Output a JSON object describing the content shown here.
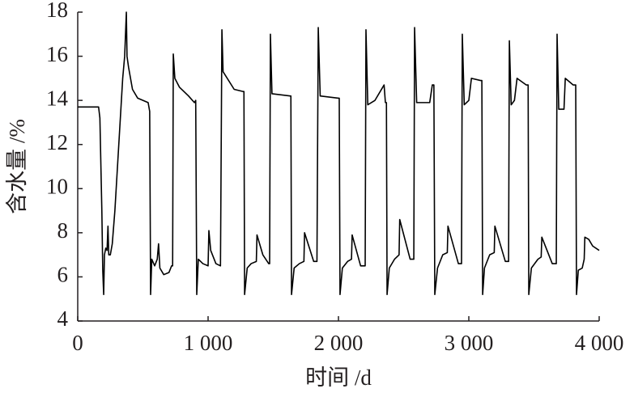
{
  "chart_data": {
    "type": "line",
    "xlabel": "时间 /d",
    "ylabel": "含水量 /%",
    "color": "#000000",
    "xlim": [
      0,
      4000
    ],
    "ylim": [
      4,
      18
    ],
    "xticks": [
      0,
      {
        "value": 1000,
        "label": "1 000"
      },
      {
        "value": 2000,
        "label": "2 000"
      },
      {
        "value": 3000,
        "label": "3 000"
      },
      {
        "value": 4000,
        "label": "4 000"
      }
    ],
    "yticks": [
      4,
      6,
      8,
      10,
      12,
      14,
      16,
      18
    ],
    "x": [
      0,
      160,
      170,
      185,
      192,
      199,
      205,
      215,
      225,
      232,
      238,
      250,
      265,
      285,
      305,
      325,
      345,
      360,
      373,
      378,
      390,
      420,
      460,
      540,
      552,
      559,
      568,
      590,
      610,
      620,
      630,
      660,
      700,
      720,
      728,
      733,
      745,
      780,
      850,
      895,
      905,
      913,
      925,
      960,
      1000,
      1006,
      1020,
      1060,
      1095,
      1106,
      1115,
      1200,
      1270,
      1275,
      1280,
      1300,
      1330,
      1370,
      1375,
      1420,
      1465,
      1472,
      1478,
      1490,
      1630,
      1635,
      1640,
      1660,
      1700,
      1735,
      1740,
      1810,
      1835,
      1845,
      1860,
      2000,
      2006,
      2012,
      2030,
      2070,
      2100,
      2105,
      2170,
      2205,
      2211,
      2225,
      2280,
      2350,
      2360,
      2368,
      2373,
      2390,
      2430,
      2465,
      2470,
      2550,
      2578,
      2584,
      2600,
      2700,
      2720,
      2732,
      2739,
      2760,
      2800,
      2835,
      2840,
      2920,
      2944,
      2950,
      2965,
      3000,
      3020,
      3090,
      3100,
      3106,
      3120,
      3160,
      3195,
      3200,
      3280,
      3305,
      3311,
      3325,
      3350,
      3370,
      3440,
      3455,
      3460,
      3480,
      3530,
      3555,
      3560,
      3640,
      3671,
      3677,
      3690,
      3730,
      3740,
      3800,
      3820,
      3826,
      3840,
      3870,
      3885,
      3890,
      3920,
      3950,
      4000
    ],
    "values": [
      13.7,
      13.7,
      13.2,
      9,
      6.3,
      5.2,
      7,
      7.3,
      7.2,
      8.3,
      7,
      7,
      7.5,
      9,
      11,
      13,
      15,
      16,
      18,
      16,
      15.5,
      14.5,
      14.1,
      13.9,
      13.5,
      5.2,
      6.8,
      6.5,
      6.8,
      7.5,
      6.4,
      6.1,
      6.2,
      6.5,
      6.5,
      16.1,
      15,
      14.6,
      14.2,
      13.9,
      14,
      5.2,
      6.8,
      6.6,
      6.5,
      8.1,
      7.2,
      6.6,
      6.5,
      17.2,
      15.3,
      14.5,
      14.4,
      14.4,
      5.2,
      6.4,
      6.6,
      6.7,
      7.9,
      7,
      6.6,
      6.6,
      17,
      14.3,
      14.2,
      14.2,
      5.2,
      6.4,
      6.6,
      6.7,
      8,
      6.7,
      6.7,
      17.3,
      14.2,
      14.1,
      14.1,
      5.2,
      6.4,
      6.7,
      6.8,
      7.9,
      6.5,
      6.5,
      17.2,
      13.8,
      14,
      14.7,
      13.9,
      13.9,
      5.2,
      6.4,
      6.8,
      7,
      8.6,
      6.8,
      6.8,
      17.3,
      13.9,
      13.9,
      14.7,
      14.7,
      5.2,
      6.4,
      7,
      7.1,
      8.3,
      6.6,
      6.6,
      17,
      13.8,
      14,
      15,
      14.9,
      14.9,
      5.2,
      6.4,
      7,
      7.1,
      8.3,
      6.7,
      6.7,
      16.7,
      13.8,
      14,
      15,
      14.7,
      14.7,
      5.2,
      6.4,
      6.8,
      6.9,
      7.8,
      6.6,
      6.6,
      17,
      13.6,
      13.6,
      15,
      14.7,
      14.7,
      5.2,
      6.3,
      6.4,
      6.8,
      7.8,
      7.7,
      7.4,
      7.2
    ]
  }
}
